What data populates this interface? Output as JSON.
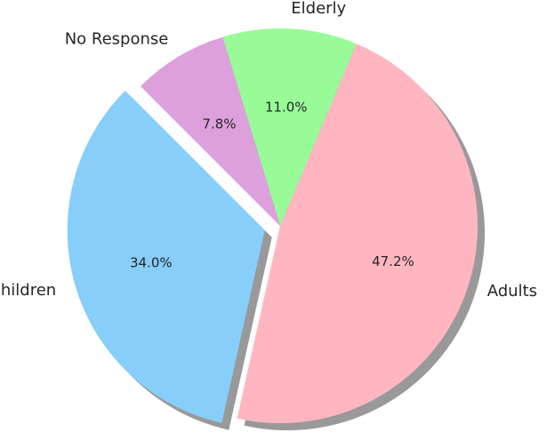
{
  "chart_data": {
    "type": "pie",
    "title": "",
    "categories": [
      "Children",
      "Adults",
      "Elderly",
      "No Response"
    ],
    "values": [
      34.0,
      47.2,
      11.0,
      7.8
    ],
    "value_labels": [
      "34.0%",
      "47.2%",
      "11.0%",
      "7.8%"
    ],
    "colors": [
      "#87CEFA",
      "#FFB6C1",
      "#98FB98",
      "#DDA0DD"
    ],
    "exploded": [
      "Children"
    ],
    "shadow": true,
    "start_angle_deg": 135,
    "legend": "none"
  }
}
